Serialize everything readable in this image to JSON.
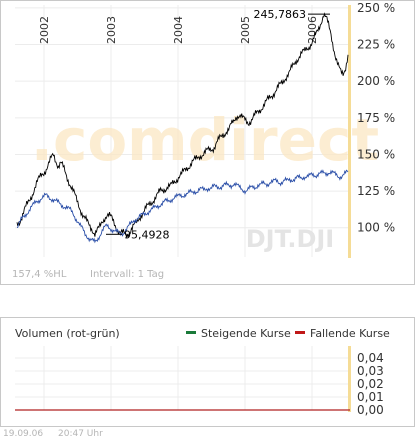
{
  "chart_data": [
    {
      "type": "line",
      "watermark": ".comdirect",
      "symbol_watermark": "DJT.DJI",
      "x_tick_labels": [
        "2002",
        "2003",
        "2004",
        "2005",
        "2006"
      ],
      "y_tick_labels": [
        "100 %",
        "125 %",
        "150 %",
        "175 %",
        "200 %",
        "225 %",
        "250 %"
      ],
      "ylim": [
        80,
        252
      ],
      "annotations": {
        "max_label": "245,7863",
        "min_label": "95,4928"
      },
      "series": [
        {
          "color": "#000000",
          "values": [
            102,
            104,
            108,
            112,
            115,
            118,
            122,
            126,
            130,
            133,
            136,
            138,
            140,
            143,
            147,
            150,
            146,
            142,
            144,
            141,
            137,
            133,
            129,
            125,
            121,
            117,
            113,
            109,
            106,
            103,
            101,
            99,
            96,
            98,
            100,
            104,
            107,
            109,
            108,
            106,
            103,
            100,
            97,
            96,
            96,
            95,
            97,
            99,
            101,
            103,
            106,
            109,
            111,
            113,
            115,
            117,
            119,
            121,
            123,
            125,
            126,
            127,
            128,
            128,
            130,
            132,
            134,
            136,
            137,
            139,
            141,
            143,
            145,
            146,
            147,
            149,
            150,
            151,
            152,
            153,
            154,
            155,
            158,
            160,
            162,
            164,
            166,
            167,
            170,
            172,
            176,
            177,
            176,
            174,
            173,
            172,
            173,
            175,
            177,
            179,
            181,
            183,
            185,
            187,
            189,
            191,
            193,
            195,
            197,
            199,
            202,
            204,
            206,
            209,
            212,
            215,
            217,
            219,
            220,
            222,
            224,
            226,
            229,
            232,
            236,
            241,
            246,
            243,
            238,
            232,
            224,
            216,
            210,
            206,
            205,
            210,
            218
          ]
        },
        {
          "color": "#2b4fa8",
          "values": [
            100,
            103,
            106,
            108,
            110,
            112,
            114,
            116,
            118,
            119,
            120,
            121,
            122,
            121,
            120,
            119,
            118,
            117,
            116,
            115,
            114,
            113,
            112,
            110,
            107,
            104,
            101,
            99,
            96,
            94,
            92,
            91,
            90,
            92,
            95,
            98,
            100,
            101,
            100,
            99,
            98,
            97,
            96,
            96,
            97,
            99,
            101,
            103,
            105,
            106,
            107,
            108,
            109,
            110,
            111,
            112,
            113,
            114,
            115,
            116,
            117,
            118,
            118,
            119,
            120,
            121,
            121,
            122,
            122,
            123,
            123,
            124,
            124,
            125,
            125,
            126,
            126,
            126,
            127,
            127,
            127,
            128,
            128,
            128,
            128,
            129,
            129,
            129,
            129,
            130,
            129,
            128,
            127,
            126,
            125,
            126,
            127,
            128,
            128,
            129,
            129,
            130,
            130,
            130,
            131,
            131,
            132,
            132,
            131,
            131,
            132,
            132,
            133,
            133,
            133,
            134,
            134,
            134,
            135,
            135,
            135,
            136,
            136,
            136,
            137,
            137,
            137,
            137,
            138,
            138,
            137,
            136,
            135,
            135,
            136,
            137,
            138
          ]
        }
      ],
      "footer": {
        "performance_label": "157,4 %HL",
        "interval_label": "Intervall: 1 Tag"
      }
    },
    {
      "type": "bar",
      "title": "Volumen (rot-grün)",
      "legend": [
        {
          "name": "Steigende Kurse",
          "color": "#1a7a3a"
        },
        {
          "name": "Fallende Kurse",
          "color": "#c01818"
        }
      ],
      "y_tick_labels": [
        "0,04",
        "0,03",
        "0,02",
        "0,01",
        "0,00"
      ],
      "ylim": [
        0,
        0.04
      ],
      "values": []
    }
  ],
  "footer": {
    "date": "19.09.06",
    "time": "20:47 Uhr"
  }
}
